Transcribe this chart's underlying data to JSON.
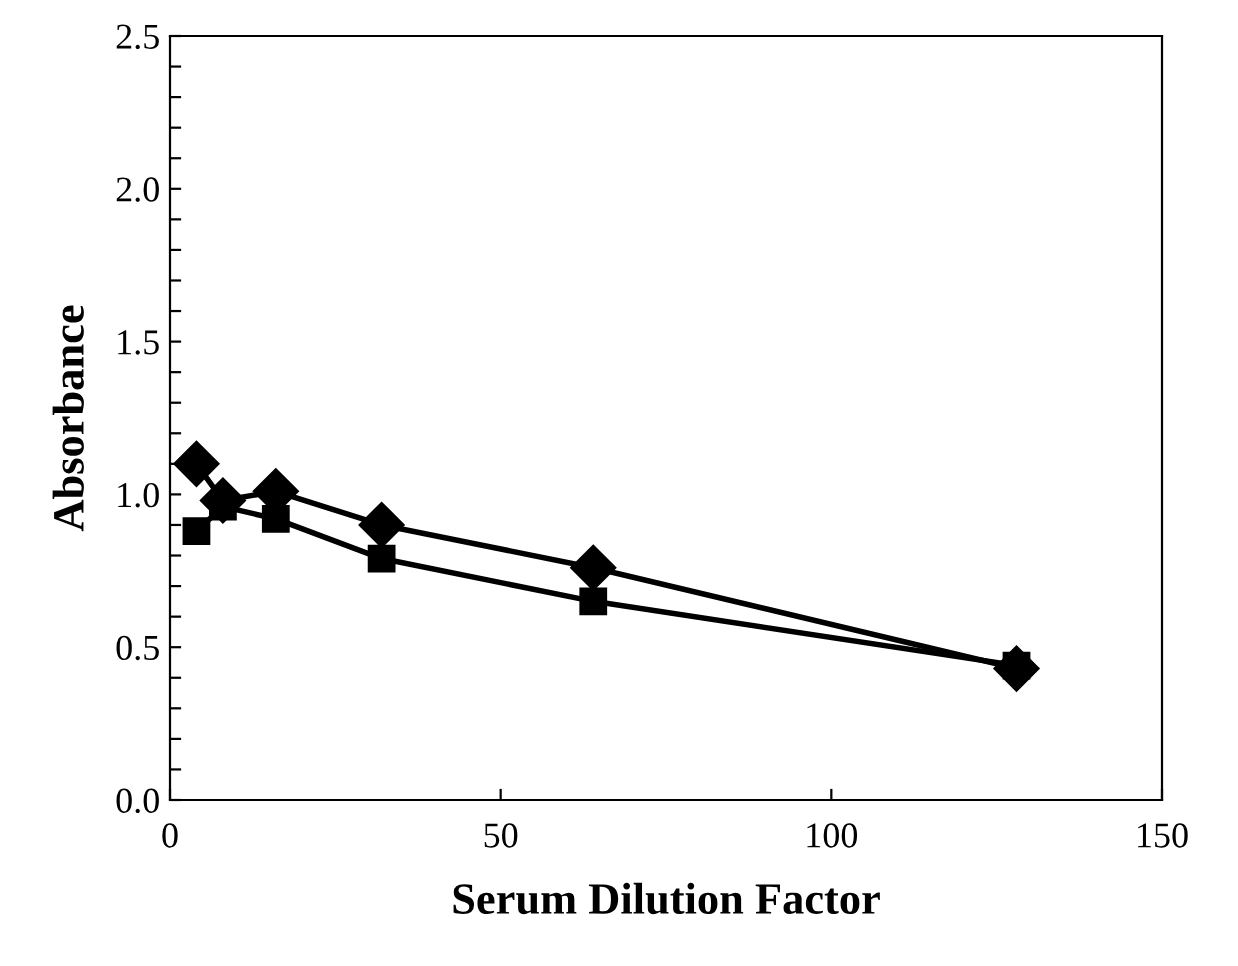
{
  "chart_data": {
    "type": "line",
    "xlabel": "Serum Dilution Factor",
    "ylabel": "Absorbance",
    "xlim": [
      0,
      150
    ],
    "xticks": [
      0,
      50,
      100,
      150
    ],
    "ylim": [
      0,
      2.5
    ],
    "yticks": [
      {
        "value": 0,
        "label": "0.0"
      },
      {
        "value": 0.1,
        "label": null
      },
      {
        "value": 0.2,
        "label": null
      },
      {
        "value": 0.3,
        "label": null
      },
      {
        "value": 0.4,
        "label": null
      },
      {
        "value": 0.5,
        "label": "0.5"
      },
      {
        "value": 0.6,
        "label": null
      },
      {
        "value": 0.7,
        "label": null
      },
      {
        "value": 0.8,
        "label": null
      },
      {
        "value": 0.9,
        "label": null
      },
      {
        "value": 1.0,
        "label": "1.0"
      },
      {
        "value": 1.1,
        "label": null
      },
      {
        "value": 1.2,
        "label": null
      },
      {
        "value": 1.3,
        "label": null
      },
      {
        "value": 1.4,
        "label": null
      },
      {
        "value": 1.5,
        "label": "1.5"
      },
      {
        "value": 1.6,
        "label": null
      },
      {
        "value": 1.7,
        "label": null
      },
      {
        "value": 1.8,
        "label": null
      },
      {
        "value": 1.9,
        "label": null
      },
      {
        "value": 2.0,
        "label": "2.0"
      },
      {
        "value": 2.1,
        "label": null
      },
      {
        "value": 2.2,
        "label": null
      },
      {
        "value": 2.3,
        "label": null
      },
      {
        "value": 2.4,
        "label": null
      },
      {
        "value": 2.5,
        "label": "2.5"
      }
    ],
    "x": [
      4,
      8,
      16,
      32,
      64,
      128
    ],
    "grid": false,
    "legend": false,
    "line_style": "solid",
    "series": [
      {
        "color": "#000000",
        "marker": "diamond",
        "values": [
          1.1,
          0.98,
          1.01,
          0.9,
          0.76,
          0.43
        ]
      },
      {
        "color": "#000000",
        "marker": "square",
        "values": [
          0.88,
          0.96,
          0.92,
          0.79,
          0.65,
          0.44
        ]
      }
    ]
  }
}
